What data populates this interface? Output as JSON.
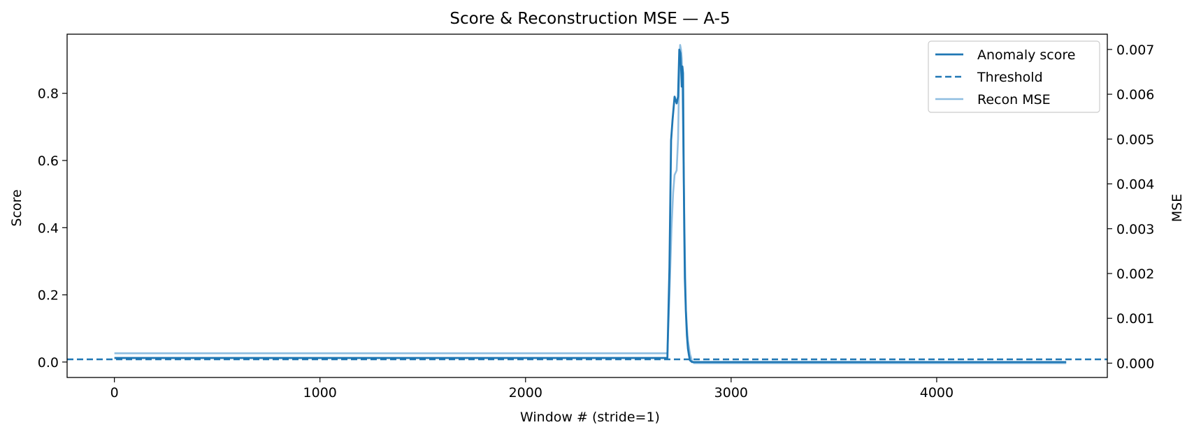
{
  "chart_data": {
    "type": "line",
    "title": "Score & Reconstruction MSE — A-5",
    "xlabel": "Window # (stride=1)",
    "ylabel": "Score",
    "ylabel_right": "MSE",
    "xlim": [
      -230,
      4830
    ],
    "ylim": [
      -0.046,
      0.976
    ],
    "ylim_right": [
      -0.00032,
      0.00734
    ],
    "xticks": [
      0,
      1000,
      2000,
      3000,
      4000
    ],
    "xtick_labels": [
      "0",
      "1000",
      "2000",
      "3000",
      "4000"
    ],
    "yticks": [
      0.0,
      0.2,
      0.4,
      0.6,
      0.8
    ],
    "ytick_labels": [
      "0.0",
      "0.2",
      "0.4",
      "0.6",
      "0.8"
    ],
    "yticks_right": [
      0.0,
      0.001,
      0.002,
      0.003,
      0.004,
      0.005,
      0.006,
      0.007
    ],
    "ytick_labels_right": [
      "0.000",
      "0.001",
      "0.002",
      "0.003",
      "0.004",
      "0.005",
      "0.006",
      "0.007"
    ],
    "grid": false,
    "legend_position": "top-right",
    "colors": {
      "score": "#1f77b4",
      "threshold": "#1f77b4",
      "mse": "#8ebde0"
    },
    "series": [
      {
        "name": "Anomaly score",
        "axis": "left",
        "style": "solid",
        "x": [
          0,
          2690,
          2700,
          2708,
          2715,
          2725,
          2735,
          2742,
          2748,
          2753,
          2757,
          2760,
          2763,
          2766,
          2769,
          2772,
          2775,
          2780,
          2785,
          2790,
          2795,
          2800,
          2810,
          2820,
          4630
        ],
        "y": [
          0.012,
          0.012,
          0.28,
          0.66,
          0.72,
          0.79,
          0.77,
          0.79,
          0.93,
          0.92,
          0.87,
          0.82,
          0.88,
          0.86,
          0.6,
          0.4,
          0.25,
          0.15,
          0.08,
          0.04,
          0.02,
          0.005,
          0.0,
          0.0,
          0.0
        ]
      },
      {
        "name": "Threshold",
        "axis": "left",
        "style": "dashed",
        "y": 0.008
      },
      {
        "name": "Recon MSE",
        "axis": "right",
        "style": "solid",
        "x": [
          0,
          2690,
          2700,
          2710,
          2718,
          2725,
          2735,
          2742,
          2748,
          2752,
          2756,
          2760,
          2765,
          2770,
          2775,
          2780,
          2785,
          2790,
          2800,
          2810,
          2820,
          4630
        ],
        "y": [
          0.00022,
          0.00022,
          0.0015,
          0.003,
          0.0038,
          0.0042,
          0.0043,
          0.005,
          0.0066,
          0.0071,
          0.007,
          0.0068,
          0.0055,
          0.004,
          0.0025,
          0.0012,
          0.0008,
          0.0005,
          0.0002,
          5e-05,
          0.0,
          0.0
        ]
      }
    ]
  }
}
